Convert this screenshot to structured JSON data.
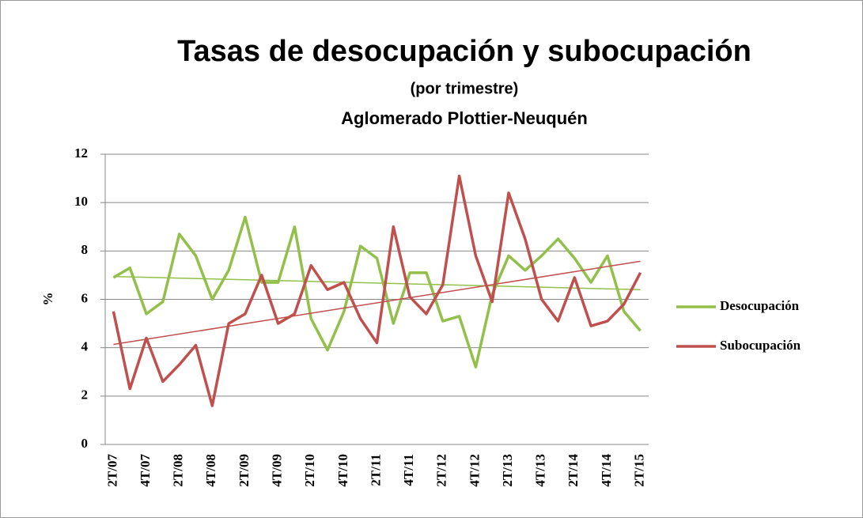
{
  "chart_data": {
    "type": "line",
    "title": "Tasas de desocupación y subocupación",
    "subtitle": "(por trimestre)",
    "subtitle2": "Aglomerado Plottier-Neuquén",
    "y_label": "%",
    "categories": [
      "2T/07",
      null,
      "4T/07",
      null,
      "2T/08",
      null,
      "4T/08",
      null,
      "2T/09",
      null,
      "4T/09",
      null,
      "2T/10",
      null,
      "4T/10",
      null,
      "2T/11",
      null,
      "4T/11",
      null,
      "2T/12",
      null,
      "4T/12",
      null,
      "2T/13",
      null,
      "4T/13",
      null,
      "2T/14",
      null,
      "4T/14",
      null,
      "2T/15"
    ],
    "series": [
      {
        "name": "Desocupación",
        "color": "#92c04a",
        "values": [
          6.9,
          7.3,
          5.4,
          5.9,
          8.7,
          7.8,
          6.0,
          7.2,
          9.4,
          6.7,
          6.7,
          9.0,
          5.2,
          3.9,
          5.5,
          8.2,
          7.7,
          5.0,
          7.1,
          7.1,
          5.1,
          5.3,
          3.2,
          6.2,
          7.8,
          7.2,
          7.8,
          8.5,
          7.7,
          6.7,
          7.8,
          5.5,
          4.7
        ]
      },
      {
        "name": "Subocupación",
        "color": "#c0504d",
        "values": [
          5.5,
          2.3,
          4.4,
          2.6,
          3.3,
          4.1,
          1.6,
          5.0,
          5.4,
          7.0,
          5.0,
          5.4,
          7.4,
          6.4,
          6.7,
          5.2,
          4.2,
          9.0,
          6.1,
          5.4,
          6.6,
          11.1,
          7.8,
          5.9,
          10.4,
          8.5,
          6.0,
          5.1,
          6.9,
          4.9,
          5.1,
          5.8,
          7.1
        ]
      }
    ],
    "ylim": [
      0,
      12
    ],
    "yticks": [
      0,
      2,
      4,
      6,
      8,
      10,
      12
    ],
    "grid": true,
    "trendline": true,
    "legend": "right"
  }
}
